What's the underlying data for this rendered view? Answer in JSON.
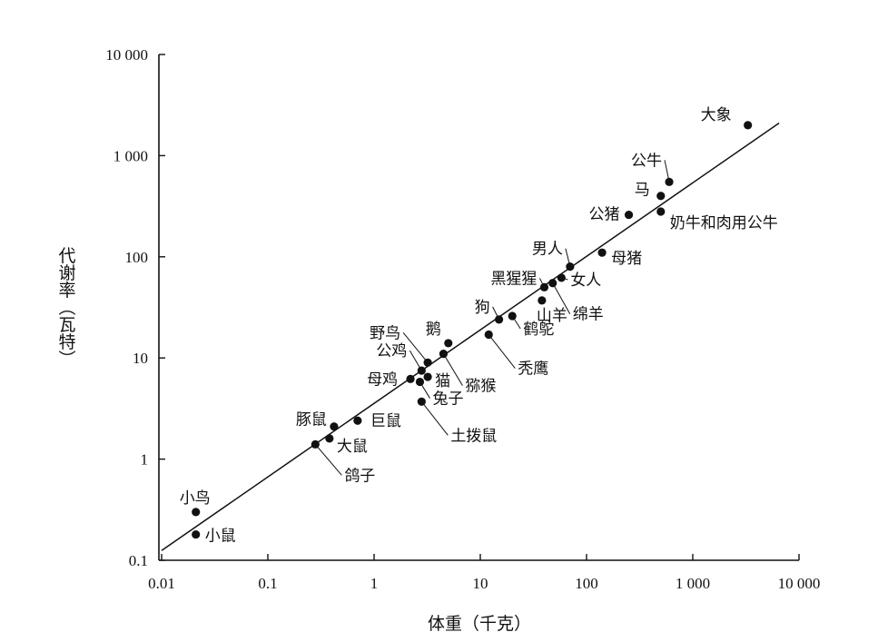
{
  "chart_data": {
    "type": "scatter",
    "title": "",
    "xlabel": "体重（千克）",
    "ylabel": "代谢率（瓦特）",
    "x_scale": "log",
    "y_scale": "log",
    "xlim": [
      0.01,
      10000
    ],
    "ylim": [
      0.1,
      10000
    ],
    "grid": false,
    "x_ticks": [
      "0.01",
      "0.1",
      "1",
      "10",
      "100",
      "1 000",
      "10 000"
    ],
    "y_ticks": [
      "0.1",
      "1",
      "10",
      "100",
      "1 000",
      "10 000"
    ],
    "points": [
      {
        "name": "大象",
        "x": 3300,
        "y": 2000
      },
      {
        "name": "公牛",
        "x": 600,
        "y": 550
      },
      {
        "name": "马",
        "x": 500,
        "y": 400
      },
      {
        "name": "奶牛和肉用公牛",
        "x": 500,
        "y": 280
      },
      {
        "name": "公猪",
        "x": 250,
        "y": 260
      },
      {
        "name": "母猪",
        "x": 140,
        "y": 110
      },
      {
        "name": "男人",
        "x": 70,
        "y": 80
      },
      {
        "name": "女人",
        "x": 58,
        "y": 62
      },
      {
        "name": "黑猩猩",
        "x": 40,
        "y": 50
      },
      {
        "name": "绵羊",
        "x": 48,
        "y": 55
      },
      {
        "name": "山羊",
        "x": 38,
        "y": 37
      },
      {
        "name": "狗",
        "x": 15,
        "y": 24
      },
      {
        "name": "鹤鸵",
        "x": 20,
        "y": 26
      },
      {
        "name": "秃鹰",
        "x": 12,
        "y": 17
      },
      {
        "name": "鹅",
        "x": 5,
        "y": 14
      },
      {
        "name": "猕猴",
        "x": 4.5,
        "y": 11
      },
      {
        "name": "野鸟",
        "x": 3.2,
        "y": 9
      },
      {
        "name": "公鸡",
        "x": 2.8,
        "y": 7.5
      },
      {
        "name": "猫",
        "x": 3.2,
        "y": 6.5
      },
      {
        "name": "母鸡",
        "x": 2.2,
        "y": 6.2
      },
      {
        "name": "兔子",
        "x": 2.7,
        "y": 5.8
      },
      {
        "name": "土拨鼠",
        "x": 2.8,
        "y": 3.7
      },
      {
        "name": "豚鼠",
        "x": 0.42,
        "y": 2.1
      },
      {
        "name": "巨鼠",
        "x": 0.7,
        "y": 2.4
      },
      {
        "name": "大鼠",
        "x": 0.38,
        "y": 1.6
      },
      {
        "name": "鸽子",
        "x": 0.28,
        "y": 1.4
      },
      {
        "name": "小鸟",
        "x": 0.021,
        "y": 0.3
      },
      {
        "name": "小鼠",
        "x": 0.021,
        "y": 0.18
      }
    ],
    "fit_line": {
      "x": [
        0.01,
        6500
      ],
      "y": [
        0.125,
        2100
      ]
    }
  }
}
